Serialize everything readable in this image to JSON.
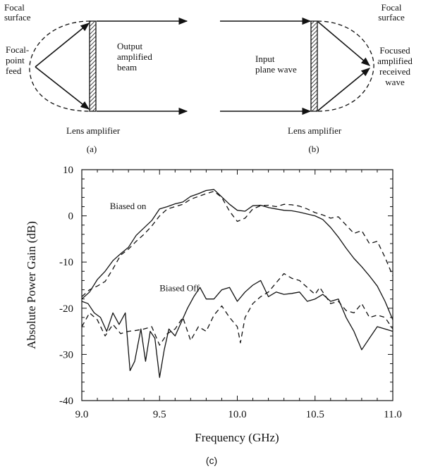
{
  "diagram_a": {
    "focal_surface": [
      "Focal",
      "surface"
    ],
    "feed": [
      "Focal-",
      "point",
      "feed"
    ],
    "output_beam": [
      "Output",
      "amplified",
      "beam"
    ],
    "lens_amplifier": "Lens amplifier",
    "caption": "(a)"
  },
  "diagram_b": {
    "input_wave": [
      "Input",
      "plane wave"
    ],
    "focal_surface": [
      "Focal",
      "surface"
    ],
    "focused_wave": [
      "Focused",
      "amplified",
      "received",
      "wave"
    ],
    "lens_amplifier": "Lens amplifier",
    "caption": "(b)"
  },
  "chart_caption": "(c)",
  "chart_data": {
    "type": "line",
    "title": "",
    "xlabel": "Frequency (GHz)",
    "ylabel": "Absolute Power Gain (dB)",
    "xlim": [
      9.0,
      11.0
    ],
    "ylim": [
      -40,
      10
    ],
    "xticks": [
      "9.0",
      "9.5",
      "10.0",
      "10.5",
      "11.0"
    ],
    "yticks": [
      "10",
      "0",
      "-10",
      "-20",
      "-30",
      "-40"
    ],
    "grid": false,
    "annotations": [
      {
        "text": "Biased on",
        "x": 9.18,
        "y": 1.5
      },
      {
        "text": "Biased Off",
        "x": 9.5,
        "y": -16.3
      }
    ],
    "series": [
      {
        "group": "Biased on",
        "style": "solid",
        "x": [
          9.0,
          9.05,
          9.1,
          9.15,
          9.2,
          9.25,
          9.3,
          9.35,
          9.4,
          9.45,
          9.5,
          9.55,
          9.6,
          9.65,
          9.7,
          9.75,
          9.8,
          9.85,
          9.9,
          9.95,
          10.0,
          10.05,
          10.1,
          10.15,
          10.2,
          10.25,
          10.3,
          10.35,
          10.4,
          10.45,
          10.5,
          10.55,
          10.6,
          10.65,
          10.7,
          10.75,
          10.8,
          10.85,
          10.9,
          10.95,
          11.0
        ],
        "y": [
          -18.0,
          -16.5,
          -13.8,
          -12.0,
          -9.7,
          -8.2,
          -6.8,
          -4.2,
          -2.6,
          -1.0,
          1.5,
          2.0,
          2.6,
          3.0,
          4.2,
          4.8,
          5.5,
          5.7,
          4.1,
          2.5,
          1.2,
          1.0,
          2.2,
          2.3,
          1.8,
          1.5,
          1.2,
          1.1,
          0.8,
          0.4,
          0.0,
          -0.8,
          -2.5,
          -4.6,
          -7.0,
          -9.2,
          -11.0,
          -13.0,
          -15.2,
          -18.5,
          -22.5
        ]
      },
      {
        "group": "Biased on",
        "style": "dashed",
        "x": [
          9.0,
          9.05,
          9.1,
          9.15,
          9.2,
          9.25,
          9.3,
          9.35,
          9.4,
          9.45,
          9.5,
          9.55,
          9.6,
          9.65,
          9.7,
          9.75,
          9.8,
          9.85,
          9.9,
          9.95,
          10.0,
          10.05,
          10.1,
          10.15,
          10.2,
          10.25,
          10.3,
          10.35,
          10.4,
          10.45,
          10.5,
          10.55,
          10.6,
          10.65,
          10.7,
          10.75,
          10.8,
          10.85,
          10.9,
          10.95,
          11.0
        ],
        "y": [
          -17.5,
          -16.0,
          -15.2,
          -14.2,
          -11.5,
          -8.5,
          -7.2,
          -5.5,
          -4.0,
          -2.2,
          0.0,
          1.5,
          2.0,
          2.5,
          3.6,
          4.2,
          4.8,
          5.3,
          4.0,
          1.0,
          -1.2,
          -0.5,
          1.5,
          2.2,
          2.3,
          2.0,
          2.5,
          2.4,
          2.1,
          1.5,
          0.7,
          0.2,
          -0.5,
          -0.2,
          -2.0,
          -3.8,
          -3.2,
          -6.0,
          -5.5,
          -9.0,
          -13.0
        ]
      },
      {
        "group": "Biased Off",
        "style": "solid",
        "x": [
          9.0,
          9.04,
          9.08,
          9.12,
          9.16,
          9.2,
          9.24,
          9.28,
          9.31,
          9.34,
          9.38,
          9.41,
          9.44,
          9.47,
          9.5,
          9.53,
          9.56,
          9.6,
          9.64,
          9.68,
          9.72,
          9.76,
          9.8,
          9.85,
          9.9,
          9.95,
          10.0,
          10.05,
          10.1,
          10.15,
          10.2,
          10.25,
          10.3,
          10.35,
          10.4,
          10.45,
          10.5,
          10.55,
          10.6,
          10.65,
          10.7,
          10.75,
          10.8,
          10.85,
          10.9,
          10.95,
          11.0
        ],
        "y": [
          -18.5,
          -19.0,
          -21.0,
          -22.0,
          -25.0,
          -21.0,
          -23.5,
          -21.0,
          -33.5,
          -31.5,
          -24.5,
          -31.5,
          -25.0,
          -26.5,
          -35.0,
          -29.0,
          -24.5,
          -26.0,
          -23.0,
          -20.0,
          -17.5,
          -15.5,
          -18.0,
          -18.0,
          -16.0,
          -15.5,
          -18.5,
          -16.5,
          -15.0,
          -14.0,
          -17.5,
          -16.5,
          -17.0,
          -16.8,
          -16.5,
          -18.5,
          -18.0,
          -17.0,
          -18.5,
          -18.0,
          -22.0,
          -25.0,
          -29.0,
          -26.5,
          -24.0,
          -24.5,
          -25.0
        ]
      },
      {
        "group": "Biased Off",
        "style": "dashed",
        "x": [
          9.0,
          9.05,
          9.1,
          9.15,
          9.2,
          9.25,
          9.3,
          9.35,
          9.4,
          9.45,
          9.5,
          9.55,
          9.6,
          9.65,
          9.7,
          9.75,
          9.8,
          9.85,
          9.9,
          9.95,
          10.0,
          10.02,
          10.05,
          10.1,
          10.15,
          10.2,
          10.25,
          10.3,
          10.35,
          10.4,
          10.45,
          10.5,
          10.53,
          10.57,
          10.6,
          10.65,
          10.7,
          10.75,
          10.8,
          10.85,
          10.9,
          10.95,
          11.0
        ],
        "y": [
          -24.0,
          -21.0,
          -22.5,
          -26.0,
          -23.5,
          -25.5,
          -25.0,
          -24.8,
          -24.5,
          -24.0,
          -28.0,
          -25.5,
          -24.5,
          -22.0,
          -27.0,
          -24.0,
          -25.0,
          -21.5,
          -19.5,
          -22.0,
          -24.0,
          -27.5,
          -22.0,
          -19.0,
          -17.5,
          -16.5,
          -14.5,
          -12.5,
          -13.5,
          -14.0,
          -15.5,
          -17.0,
          -15.5,
          -17.5,
          -19.0,
          -18.5,
          -20.5,
          -21.0,
          -19.0,
          -22.0,
          -21.5,
          -22.0,
          -24.5
        ]
      }
    ]
  }
}
